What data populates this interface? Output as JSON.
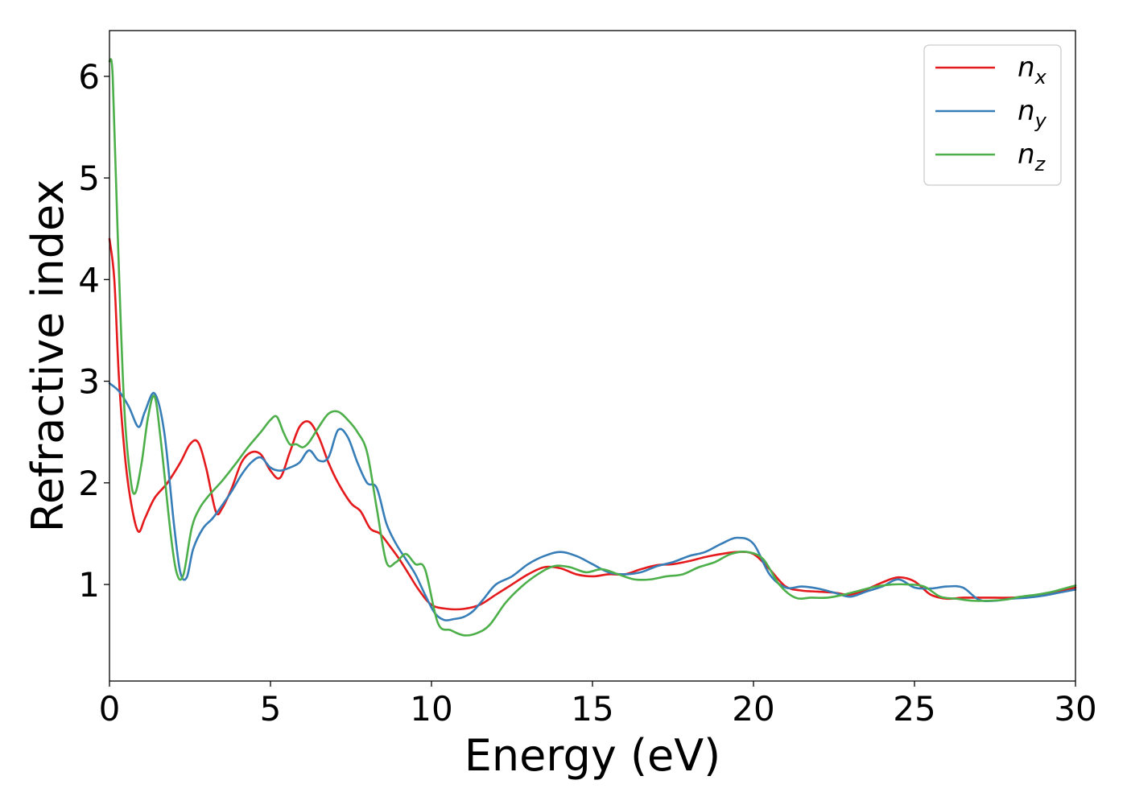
{
  "chart_data": {
    "type": "line",
    "title": "",
    "xlabel": "Energy (eV)",
    "ylabel": "Refractive index",
    "xlim": [
      0,
      30
    ],
    "ylim": [
      0.05,
      6.45
    ],
    "xticks": [
      0,
      5,
      10,
      15,
      20,
      25,
      30
    ],
    "yticks": [
      1,
      2,
      3,
      4,
      5,
      6
    ],
    "grid": false,
    "legend_position": "top-right",
    "series": [
      {
        "name": "n",
        "subscript": "x",
        "color": "#e41a1c",
        "x": [
          0,
          0.15,
          0.3,
          0.5,
          0.7,
          0.9,
          1.1,
          1.4,
          1.8,
          2.2,
          2.5,
          2.75,
          3.0,
          3.3,
          3.5,
          3.8,
          4.1,
          4.4,
          4.7,
          5.0,
          5.3,
          5.6,
          5.9,
          6.2,
          6.5,
          6.8,
          7.1,
          7.5,
          7.8,
          8.1,
          8.4,
          8.7,
          9.0,
          9.3,
          9.6,
          10.0,
          10.5,
          11.0,
          11.5,
          12.0,
          12.5,
          13.0,
          13.5,
          14.0,
          14.5,
          15.0,
          15.5,
          16.0,
          16.5,
          17.0,
          17.5,
          18.0,
          18.5,
          19.0,
          19.5,
          20.0,
          20.5,
          21.0,
          21.5,
          22.0,
          22.5,
          23.0,
          23.5,
          24.0,
          24.5,
          25.0,
          25.5,
          26.0,
          26.5,
          27.0,
          27.5,
          28.0,
          28.5,
          29.0,
          29.5,
          30.0
        ],
        "y": [
          4.4,
          4.0,
          3.0,
          2.2,
          1.75,
          1.52,
          1.65,
          1.85,
          2.0,
          2.2,
          2.38,
          2.4,
          2.15,
          1.72,
          1.75,
          1.95,
          2.2,
          2.3,
          2.28,
          2.12,
          2.05,
          2.3,
          2.55,
          2.6,
          2.45,
          2.2,
          2.0,
          1.8,
          1.72,
          1.55,
          1.5,
          1.38,
          1.25,
          1.1,
          0.95,
          0.8,
          0.76,
          0.76,
          0.8,
          0.9,
          1.0,
          1.1,
          1.17,
          1.16,
          1.1,
          1.08,
          1.1,
          1.1,
          1.15,
          1.19,
          1.2,
          1.23,
          1.27,
          1.3,
          1.32,
          1.3,
          1.15,
          0.98,
          0.94,
          0.93,
          0.92,
          0.9,
          0.95,
          1.02,
          1.07,
          1.03,
          0.9,
          0.86,
          0.87,
          0.87,
          0.87,
          0.87,
          0.88,
          0.9,
          0.93,
          0.97
        ]
      },
      {
        "name": "n",
        "subscript": "y",
        "color": "#377eb8",
        "x": [
          0,
          0.3,
          0.6,
          0.9,
          1.1,
          1.4,
          1.7,
          2.0,
          2.2,
          2.4,
          2.6,
          2.9,
          3.2,
          3.5,
          3.8,
          4.1,
          4.4,
          4.7,
          5.0,
          5.3,
          5.6,
          5.9,
          6.2,
          6.5,
          6.8,
          7.1,
          7.4,
          7.7,
          8.0,
          8.3,
          8.6,
          8.9,
          9.2,
          9.5,
          9.8,
          10.1,
          10.4,
          10.7,
          11.0,
          11.3,
          11.6,
          12.0,
          12.5,
          13.0,
          13.5,
          14.0,
          14.5,
          15.0,
          15.5,
          16.0,
          16.5,
          17.0,
          17.5,
          18.0,
          18.5,
          19.0,
          19.5,
          20.0,
          20.5,
          21.0,
          21.5,
          22.0,
          22.5,
          23.0,
          23.5,
          24.0,
          24.5,
          25.0,
          25.5,
          26.0,
          26.5,
          27.0,
          27.5,
          28.0,
          28.5,
          29.0,
          29.5,
          30.0
        ],
        "y": [
          2.98,
          2.9,
          2.75,
          2.55,
          2.7,
          2.88,
          2.5,
          1.6,
          1.12,
          1.07,
          1.35,
          1.55,
          1.65,
          1.78,
          1.92,
          2.08,
          2.2,
          2.25,
          2.15,
          2.12,
          2.15,
          2.2,
          2.32,
          2.22,
          2.25,
          2.52,
          2.45,
          2.2,
          2.0,
          1.95,
          1.6,
          1.4,
          1.25,
          1.1,
          0.9,
          0.72,
          0.65,
          0.66,
          0.68,
          0.74,
          0.85,
          1.0,
          1.08,
          1.2,
          1.28,
          1.32,
          1.28,
          1.2,
          1.12,
          1.1,
          1.12,
          1.18,
          1.22,
          1.28,
          1.32,
          1.4,
          1.46,
          1.4,
          1.1,
          0.97,
          0.98,
          0.96,
          0.92,
          0.88,
          0.93,
          0.98,
          1.05,
          0.97,
          0.96,
          0.98,
          0.97,
          0.85,
          0.84,
          0.86,
          0.87,
          0.89,
          0.92,
          0.95
        ]
      },
      {
        "name": "n",
        "subscript": "z",
        "color": "#4daf4a",
        "x": [
          0,
          0.1,
          0.25,
          0.45,
          0.65,
          0.8,
          1.0,
          1.2,
          1.4,
          1.6,
          1.9,
          2.1,
          2.3,
          2.55,
          2.8,
          3.1,
          3.5,
          3.9,
          4.3,
          4.7,
          5.0,
          5.2,
          5.4,
          5.6,
          5.8,
          6.0,
          6.2,
          6.5,
          6.8,
          7.1,
          7.4,
          7.7,
          8.0,
          8.3,
          8.6,
          8.9,
          9.2,
          9.5,
          9.8,
          10.2,
          10.6,
          11.0,
          11.4,
          11.8,
          12.3,
          12.8,
          13.3,
          13.8,
          14.3,
          14.8,
          15.3,
          15.8,
          16.3,
          16.8,
          17.3,
          17.8,
          18.3,
          18.8,
          19.3,
          19.8,
          20.3,
          20.8,
          21.3,
          21.8,
          22.3,
          22.8,
          23.3,
          23.8,
          24.3,
          24.8,
          25.3,
          25.8,
          26.3,
          26.8,
          27.3,
          27.8,
          28.3,
          28.8,
          29.3,
          30.0
        ],
        "y": [
          6.15,
          6.0,
          4.5,
          2.8,
          2.05,
          1.9,
          2.2,
          2.65,
          2.85,
          2.4,
          1.5,
          1.1,
          1.1,
          1.55,
          1.75,
          1.88,
          2.02,
          2.18,
          2.35,
          2.5,
          2.62,
          2.65,
          2.5,
          2.38,
          2.38,
          2.35,
          2.4,
          2.55,
          2.68,
          2.7,
          2.62,
          2.5,
          2.3,
          1.75,
          1.22,
          1.22,
          1.3,
          1.2,
          1.15,
          0.62,
          0.55,
          0.5,
          0.52,
          0.6,
          0.82,
          0.98,
          1.1,
          1.18,
          1.17,
          1.12,
          1.15,
          1.1,
          1.05,
          1.05,
          1.08,
          1.1,
          1.17,
          1.22,
          1.3,
          1.32,
          1.25,
          1.0,
          0.87,
          0.87,
          0.87,
          0.9,
          0.94,
          0.98,
          1.0,
          1.0,
          0.98,
          0.88,
          0.86,
          0.84,
          0.84,
          0.85,
          0.88,
          0.9,
          0.93,
          0.99
        ]
      }
    ]
  }
}
